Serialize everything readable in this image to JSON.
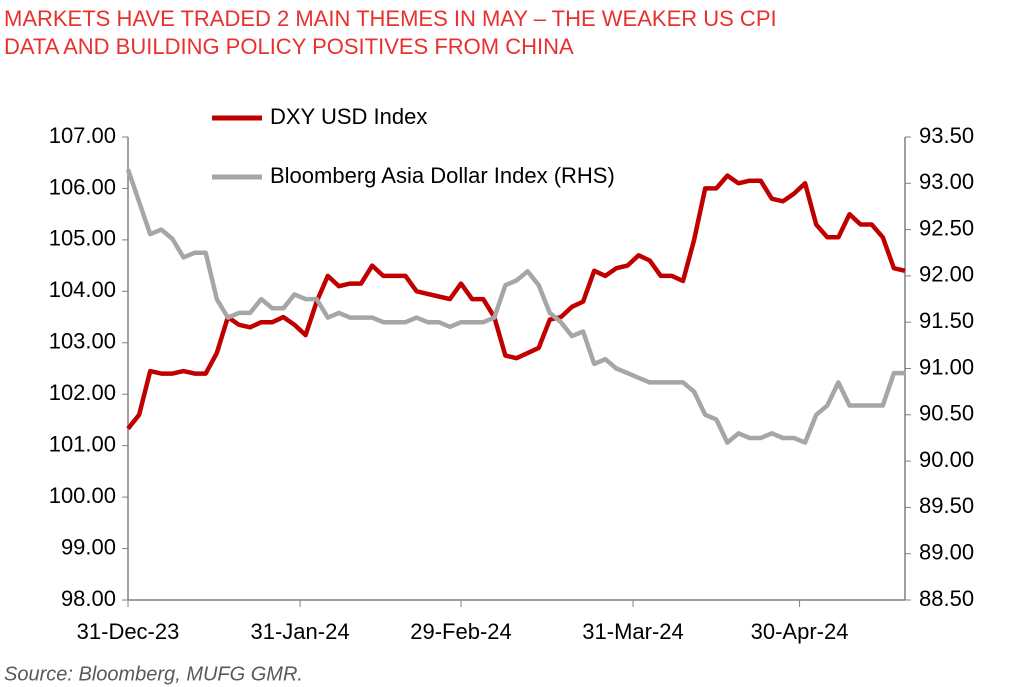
{
  "chart_data": {
    "type": "line",
    "title": [
      "MARKETS HAVE TRADED 2 MAIN THEMES IN MAY – THE WEAKER US CPI",
      "DATA AND BUILDING POLICY POSITIVES FROM CHINA"
    ],
    "source": "Source: Bloomberg, MUFG GMR.",
    "x": [
      "31-Dec-23",
      "2-Jan-24",
      "4-Jan-24",
      "6-Jan-24",
      "8-Jan-24",
      "10-Jan-24",
      "12-Jan-24",
      "14-Jan-24",
      "16-Jan-24",
      "18-Jan-24",
      "20-Jan-24",
      "22-Jan-24",
      "24-Jan-24",
      "26-Jan-24",
      "28-Jan-24",
      "30-Jan-24",
      "1-Feb-24",
      "3-Feb-24",
      "5-Feb-24",
      "7-Feb-24",
      "9-Feb-24",
      "11-Feb-24",
      "13-Feb-24",
      "15-Feb-24",
      "17-Feb-24",
      "19-Feb-24",
      "21-Feb-24",
      "23-Feb-24",
      "25-Feb-24",
      "27-Feb-24",
      "29-Feb-24",
      "2-Mar-24",
      "4-Mar-24",
      "6-Mar-24",
      "8-Mar-24",
      "10-Mar-24",
      "12-Mar-24",
      "14-Mar-24",
      "16-Mar-24",
      "18-Mar-24",
      "20-Mar-24",
      "22-Mar-24",
      "24-Mar-24",
      "26-Mar-24",
      "28-Mar-24",
      "30-Mar-24",
      "1-Apr-24",
      "3-Apr-24",
      "5-Apr-24",
      "7-Apr-24",
      "9-Apr-24",
      "11-Apr-24",
      "13-Apr-24",
      "15-Apr-24",
      "17-Apr-24",
      "19-Apr-24",
      "21-Apr-24",
      "23-Apr-24",
      "25-Apr-24",
      "27-Apr-24",
      "29-Apr-24",
      "1-May-24",
      "3-May-24",
      "5-May-24",
      "7-May-24",
      "9-May-24",
      "11-May-24",
      "13-May-24",
      "15-May-24",
      "17-May-24",
      "19-May-24"
    ],
    "series": [
      {
        "name": "DXY USD Index",
        "color": "#c00000",
        "axis": "y",
        "values": [
          101.33,
          101.6,
          102.45,
          102.4,
          102.4,
          102.45,
          102.4,
          102.4,
          102.8,
          103.5,
          103.35,
          103.3,
          103.4,
          103.4,
          103.5,
          103.35,
          103.15,
          103.8,
          104.3,
          104.1,
          104.15,
          104.15,
          104.5,
          104.3,
          104.3,
          104.3,
          104.0,
          103.95,
          103.9,
          103.85,
          104.15,
          103.85,
          103.85,
          103.5,
          102.75,
          102.7,
          102.8,
          102.9,
          103.45,
          103.5,
          103.7,
          103.8,
          104.4,
          104.3,
          104.45,
          104.5,
          104.7,
          104.6,
          104.3,
          104.3,
          104.2,
          105.0,
          106.0,
          106.0,
          106.25,
          106.1,
          106.15,
          106.15,
          105.8,
          105.75,
          105.9,
          106.1,
          105.3,
          105.05,
          105.05,
          105.5,
          105.3,
          105.3,
          105.05,
          104.45,
          104.4
        ]
      },
      {
        "name": "Bloomberg Asia Dollar Index (RHS)",
        "color": "#a6a6a6",
        "axis": "y2",
        "values": [
          93.15,
          92.8,
          92.45,
          92.5,
          92.4,
          92.2,
          92.25,
          92.25,
          91.75,
          91.55,
          91.6,
          91.6,
          91.75,
          91.65,
          91.65,
          91.8,
          91.75,
          91.75,
          91.55,
          91.6,
          91.55,
          91.55,
          91.55,
          91.5,
          91.5,
          91.5,
          91.55,
          91.5,
          91.5,
          91.45,
          91.5,
          91.5,
          91.5,
          91.55,
          91.9,
          91.95,
          92.05,
          91.9,
          91.6,
          91.5,
          91.35,
          91.4,
          91.05,
          91.1,
          91.0,
          90.95,
          90.9,
          90.85,
          90.85,
          90.85,
          90.85,
          90.75,
          90.5,
          90.45,
          90.2,
          90.3,
          90.25,
          90.25,
          90.3,
          90.25,
          90.25,
          90.2,
          90.5,
          90.6,
          90.85,
          90.6,
          90.6,
          90.6,
          90.6,
          90.95,
          90.95
        ]
      }
    ],
    "xlim": [
      "31-Dec-23",
      "19-May-24"
    ],
    "xticks": [
      "31-Dec-23",
      "31-Jan-24",
      "29-Feb-24",
      "31-Mar-24",
      "30-Apr-24"
    ],
    "ylim": [
      98,
      107
    ],
    "yticks": [
      {
        "value": 98,
        "label": "98.00"
      },
      {
        "value": 99,
        "label": "99.00"
      },
      {
        "value": 100,
        "label": "100.00"
      },
      {
        "value": 101,
        "label": "101.00"
      },
      {
        "value": 102,
        "label": "102.00"
      },
      {
        "value": 103,
        "label": "103.00"
      },
      {
        "value": 104,
        "label": "104.00"
      },
      {
        "value": 105,
        "label": "105.00"
      },
      {
        "value": 106,
        "label": "106.00"
      },
      {
        "value": 107,
        "label": "107.00"
      }
    ],
    "y2lim": [
      88.5,
      93.5
    ],
    "y2ticks": [
      {
        "value": 88.5,
        "label": "88.50"
      },
      {
        "value": 89,
        "label": "89.00"
      },
      {
        "value": 89.5,
        "label": "89.50"
      },
      {
        "value": 90,
        "label": "90.00"
      },
      {
        "value": 90.5,
        "label": "90.50"
      },
      {
        "value": 91,
        "label": "91.00"
      },
      {
        "value": 91.5,
        "label": "91.50"
      },
      {
        "value": 92,
        "label": "92.00"
      },
      {
        "value": 92.5,
        "label": "92.50"
      },
      {
        "value": 93,
        "label": "93.00"
      },
      {
        "value": 93.5,
        "label": "93.50"
      }
    ],
    "grid": false,
    "legend": "top-left"
  }
}
